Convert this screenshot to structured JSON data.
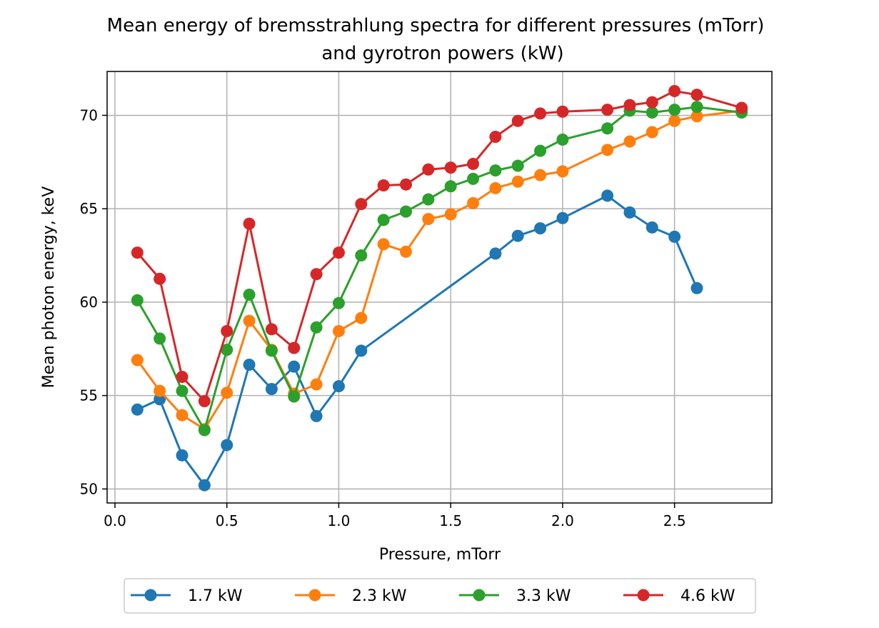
{
  "chart_data": {
    "type": "line",
    "title": "Mean energy of bremsstrahlung spectra for different pressures (mTorr)",
    "subtitle": "and gyrotron powers (kW)",
    "xlabel": "Pressure, mTorr",
    "ylabel": "Mean photon energy, keV",
    "xlim": [
      -0.035,
      2.935
    ],
    "ylim": [
      49.25,
      72.35
    ],
    "xticks": [
      0.0,
      0.5,
      1.0,
      1.5,
      2.0,
      2.5
    ],
    "xtick_labels": [
      "0.0",
      "0.5",
      "1.0",
      "1.5",
      "2.0",
      "2.5"
    ],
    "yticks": [
      50,
      55,
      60,
      65,
      70
    ],
    "ytick_labels": [
      "50",
      "55",
      "60",
      "65",
      "70"
    ],
    "grid": true,
    "legend_position": "bottom-center",
    "series": [
      {
        "name": "1.7 kW",
        "color": "#1f77b4",
        "x": [
          0.1,
          0.2,
          0.3,
          0.4,
          0.5,
          0.6,
          0.7,
          0.8,
          0.9,
          1.0,
          1.1,
          1.7,
          1.8,
          1.9,
          2.0,
          2.2,
          2.3,
          2.4,
          2.5,
          2.6
        ],
        "y": [
          54.25,
          54.8,
          51.8,
          50.2,
          52.35,
          56.65,
          55.35,
          56.55,
          53.9,
          55.5,
          57.4,
          62.6,
          63.55,
          63.95,
          64.5,
          65.7,
          64.8,
          64.0,
          63.5,
          60.75
        ]
      },
      {
        "name": "2.3 kW",
        "color": "#ff7f0e",
        "x": [
          0.1,
          0.2,
          0.3,
          0.4,
          0.5,
          0.6,
          0.7,
          0.8,
          0.9,
          1.0,
          1.1,
          1.2,
          1.3,
          1.4,
          1.5,
          1.6,
          1.7,
          1.8,
          1.9,
          2.0,
          2.2,
          2.3,
          2.4,
          2.5,
          2.6,
          2.8
        ],
        "y": [
          56.9,
          55.25,
          53.95,
          53.2,
          55.15,
          59.0,
          57.45,
          55.1,
          55.6,
          58.45,
          59.15,
          63.1,
          62.7,
          64.45,
          64.7,
          65.3,
          66.1,
          66.45,
          66.8,
          67.0,
          68.15,
          68.6,
          69.1,
          69.7,
          69.95,
          70.25
        ]
      },
      {
        "name": "3.3 kW",
        "color": "#2ca02c",
        "x": [
          0.1,
          0.2,
          0.3,
          0.4,
          0.5,
          0.6,
          0.7,
          0.8,
          0.9,
          1.0,
          1.1,
          1.2,
          1.3,
          1.4,
          1.5,
          1.6,
          1.7,
          1.8,
          1.9,
          2.0,
          2.2,
          2.3,
          2.4,
          2.5,
          2.6,
          2.8
        ],
        "y": [
          60.1,
          58.05,
          55.25,
          53.15,
          57.45,
          60.4,
          57.4,
          54.95,
          58.65,
          59.95,
          62.5,
          64.4,
          64.85,
          65.5,
          66.2,
          66.6,
          67.05,
          67.3,
          68.1,
          68.7,
          69.3,
          70.25,
          70.15,
          70.3,
          70.45,
          70.15
        ]
      },
      {
        "name": "4.6 kW",
        "color": "#d62728",
        "x": [
          0.1,
          0.2,
          0.3,
          0.4,
          0.5,
          0.6,
          0.7,
          0.8,
          0.9,
          1.0,
          1.1,
          1.2,
          1.3,
          1.4,
          1.5,
          1.6,
          1.7,
          1.8,
          1.9,
          2.0,
          2.2,
          2.3,
          2.4,
          2.5,
          2.6,
          2.8
        ],
        "y": [
          62.65,
          61.25,
          56.0,
          54.7,
          58.45,
          64.2,
          58.55,
          57.55,
          61.5,
          62.65,
          65.25,
          66.25,
          66.3,
          67.1,
          67.2,
          67.4,
          68.85,
          69.7,
          70.1,
          70.2,
          70.3,
          70.55,
          70.7,
          71.3,
          71.1,
          70.4
        ]
      }
    ]
  }
}
